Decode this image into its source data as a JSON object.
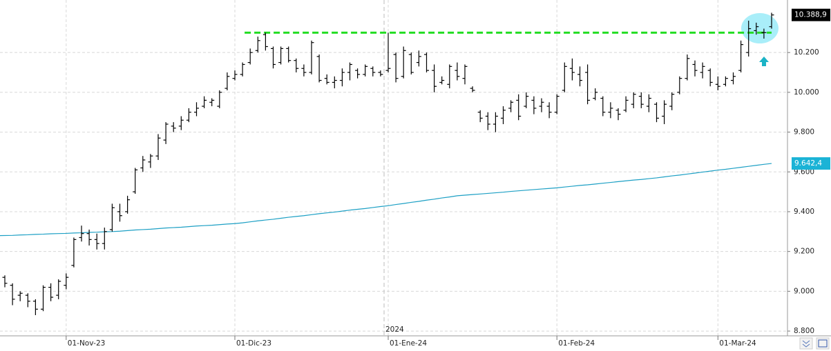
{
  "chart_data": {
    "type": "ohlc",
    "ylim": [
      8776,
      10464
    ],
    "yticks": [
      {
        "value": 8800,
        "label": "8.800"
      },
      {
        "value": 9000,
        "label": "9.000"
      },
      {
        "value": 9200,
        "label": "9.200"
      },
      {
        "value": 9400,
        "label": "9.400"
      },
      {
        "value": 9600,
        "label": "9.600"
      },
      {
        "value": 9800,
        "label": "9.800"
      },
      {
        "value": 10000,
        "label": "10.000"
      },
      {
        "value": 10200,
        "label": "10.200"
      }
    ],
    "grid": true,
    "categories": [
      null,
      null,
      null,
      null,
      null,
      null,
      null,
      null,
      "01-Nov-23",
      null,
      null,
      null,
      null,
      null,
      null,
      null,
      null,
      null,
      null,
      null,
      null,
      null,
      null,
      null,
      null,
      null,
      null,
      null,
      null,
      null,
      "01-Dic-23",
      null,
      null,
      null,
      null,
      null,
      null,
      null,
      null,
      null,
      null,
      null,
      null,
      null,
      null,
      null,
      null,
      null,
      null,
      null,
      "01-Ene-24",
      null,
      null,
      null,
      null,
      null,
      null,
      null,
      null,
      null,
      null,
      null,
      null,
      null,
      null,
      null,
      null,
      null,
      null,
      null,
      null,
      null,
      "01-Feb-24",
      null,
      null,
      null,
      null,
      null,
      null,
      null,
      null,
      null,
      null,
      null,
      null,
      null,
      null,
      null,
      null,
      null,
      null,
      null,
      null,
      "01-Mar-24",
      null,
      null,
      null,
      null,
      null,
      null,
      null
    ],
    "year_divider": {
      "label": "2024",
      "category_index": 50
    },
    "color": "#000000",
    "open": [
      9070,
      9030,
      8980,
      8980,
      8950,
      8910,
      9020,
      8980,
      9030,
      9130,
      9270,
      9290,
      9260,
      9240,
      9310,
      9400,
      9400,
      9500,
      9620,
      9650,
      9680,
      9760,
      9830,
      9830,
      9860,
      9900,
      9930,
      9950,
      9930,
      10020,
      10070,
      10090,
      10150,
      10210,
      10290,
      10220,
      10150,
      10220,
      10160,
      10120,
      10100,
      10180,
      10070,
      10050,
      10060,
      10100,
      10110,
      10090,
      10120,
      10100,
      10110,
      10190,
      10080,
      10190,
      10150,
      10190,
      10110,
      10050,
      10040,
      10110,
      10070,
      10020,
      9900,
      9880,
      9840,
      9870,
      9920,
      9960,
      9930,
      9960,
      9930,
      9930,
      9900,
      10010,
      10120,
      10090,
      10100,
      9970,
      9970,
      9900,
      9910,
      9910,
      9940,
      9980,
      9930,
      9940,
      9880,
      9930,
      10000,
      10070,
      10140,
      10100,
      10110,
      10040,
      10040,
      10060,
      10110,
      10200,
      10310,
      10300,
      10330
    ],
    "high": [
      9080,
      9040,
      9000,
      8990,
      8960,
      9030,
      9040,
      9060,
      9090,
      9270,
      9330,
      9310,
      9290,
      9320,
      9440,
      9440,
      9480,
      9620,
      9680,
      9690,
      9790,
      9850,
      9850,
      9880,
      9920,
      9950,
      9980,
      9970,
      10010,
      10100,
      10110,
      10150,
      10220,
      10280,
      10300,
      10230,
      10230,
      10230,
      10170,
      10140,
      10260,
      10190,
      10090,
      10080,
      10120,
      10150,
      10120,
      10140,
      10130,
      10110,
      10300,
      10200,
      10230,
      10200,
      10210,
      10200,
      10140,
      10080,
      10140,
      10150,
      10140,
      10030,
      9910,
      9900,
      9900,
      9930,
      9960,
      9990,
      10000,
      9980,
      9970,
      9950,
      9990,
      10150,
      10170,
      10130,
      10140,
      10020,
      9980,
      9950,
      9920,
      9980,
      10000,
      10000,
      9990,
      9950,
      9960,
      10000,
      10080,
      10190,
      10160,
      10150,
      10120,
      10080,
      10080,
      10100,
      10260,
      10360,
      10350,
      10320,
      10400
    ],
    "low": [
      9020,
      8930,
      8950,
      8920,
      8880,
      8900,
      8950,
      8960,
      9010,
      9120,
      9250,
      9230,
      9210,
      9210,
      9300,
      9350,
      9390,
      9490,
      9600,
      9620,
      9660,
      9740,
      9800,
      9810,
      9850,
      9880,
      9920,
      9930,
      9920,
      10010,
      10060,
      10080,
      10140,
      10200,
      10210,
      10120,
      10140,
      10150,
      10100,
      10080,
      10090,
      10050,
      10040,
      10020,
      10030,
      10060,
      10070,
      10080,
      10080,
      10080,
      10100,
      10050,
      10070,
      10090,
      10130,
      10100,
      10000,
      10040,
      10020,
      10060,
      10040,
      10000,
      9850,
      9810,
      9800,
      9840,
      9900,
      9860,
      9920,
      9890,
      9900,
      9870,
      9890,
      10000,
      10060,
      10030,
      9940,
      9960,
      9880,
      9870,
      9860,
      9900,
      9920,
      9920,
      9900,
      9850,
      9840,
      9910,
      9990,
      10060,
      10080,
      10070,
      10030,
      10010,
      10030,
      10040,
      10100,
      10180,
      10290,
      10270,
      10320
    ],
    "close": [
      9040,
      8960,
      8990,
      8950,
      8910,
      9020,
      8970,
      9050,
      9070,
      9260,
      9290,
      9260,
      9240,
      9300,
      9420,
      9380,
      9460,
      9610,
      9660,
      9680,
      9770,
      9840,
      9820,
      9860,
      9900,
      9920,
      9960,
      9960,
      10000,
      10080,
      10090,
      10140,
      10200,
      10260,
      10230,
      10140,
      10220,
      10160,
      10120,
      10100,
      10250,
      10060,
      10050,
      10060,
      10100,
      10140,
      10090,
      10130,
      10100,
      10090,
      10120,
      10070,
      10210,
      10100,
      10180,
      10110,
      10030,
      10060,
      10130,
      10080,
      10130,
      10010,
      9870,
      9840,
      9880,
      9910,
      9950,
      9880,
      9980,
      9920,
      9950,
      9900,
      9980,
      10130,
      10100,
      10060,
      9960,
      10000,
      9900,
      9920,
      9890,
      9960,
      9990,
      9940,
      9970,
      9870,
      9940,
      9990,
      10070,
      10170,
      10110,
      10130,
      10050,
      10030,
      10070,
      10080,
      10240,
      10320,
      10330,
      10300,
      10388.9
    ],
    "moving_average": {
      "color": "#1b9fc4",
      "values": [
        9280,
        9281,
        9283,
        9284,
        9286,
        9287,
        9289,
        9290,
        9291,
        9293,
        9294,
        9296,
        9297,
        9299,
        9300,
        9302,
        9305,
        9308,
        9310,
        9312,
        9315,
        9318,
        9320,
        9322,
        9325,
        9328,
        9330,
        9332,
        9335,
        9338,
        9340,
        9344,
        9349,
        9354,
        9358,
        9362,
        9367,
        9372,
        9376,
        9380,
        9385,
        9390,
        9394,
        9398,
        9403,
        9408,
        9412,
        9416,
        9421,
        9426,
        9430,
        9436,
        9441,
        9447,
        9452,
        9458,
        9463,
        9469,
        9474,
        9480,
        9483,
        9486,
        9489,
        9492,
        9495,
        9498,
        9502,
        9505,
        9508,
        9511,
        9514,
        9517,
        9520,
        9524,
        9528,
        9532,
        9535,
        9539,
        9543,
        9547,
        9551,
        9555,
        9559,
        9562,
        9566,
        9570,
        9575,
        9580,
        9584,
        9589,
        9594,
        9599,
        9604,
        9609,
        9613,
        9618,
        9623,
        9628,
        9633,
        9638,
        9642.4
      ]
    },
    "last_price_label": {
      "value": 10388.9,
      "label": "10.388,9",
      "color": "#000000"
    },
    "ma_label": {
      "value": 9642.4,
      "label": "9.642,4",
      "color": "#1bb3d6"
    },
    "resistance": {
      "value": 10300,
      "color": "#22dd22"
    }
  }
}
